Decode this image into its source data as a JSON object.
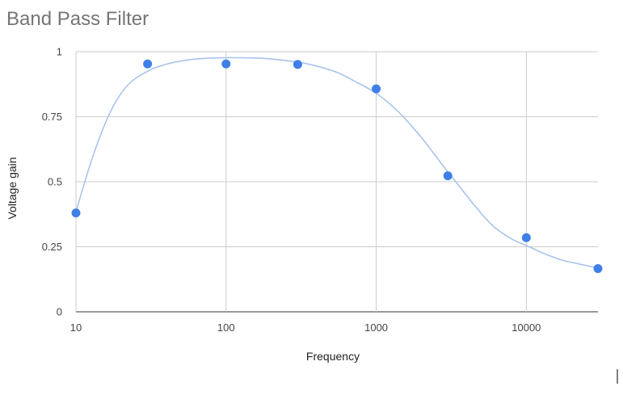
{
  "chart_data": {
    "type": "scatter",
    "title": "Band Pass Filter",
    "xlabel": "Frequency",
    "ylabel": "Voltage gain",
    "x_scale": "log",
    "xlim": [
      10,
      30000
    ],
    "ylim": [
      0,
      1
    ],
    "x_ticks": [
      10,
      100,
      1000,
      10000
    ],
    "x_tick_labels": [
      "10",
      "100",
      "1000",
      "10000"
    ],
    "y_ticks": [
      0,
      0.25,
      0.5,
      0.75,
      1
    ],
    "y_tick_labels": [
      "0",
      "0.25",
      "0.5",
      "0.75",
      "1"
    ],
    "grid": true,
    "legend": "none",
    "series": [
      {
        "x": [
          10,
          30,
          100,
          300,
          1000,
          3000,
          10000,
          30000
        ],
        "y": [
          0.38,
          0.953,
          0.953,
          0.951,
          0.857,
          0.523,
          0.285,
          0.166
        ]
      }
    ],
    "trendline": {
      "x": [
        10,
        13,
        17,
        22,
        30,
        40,
        55,
        75,
        100,
        150,
        200,
        300,
        400,
        550,
        700,
        1000,
        1400,
        2000,
        2800,
        3500,
        4500,
        6000,
        8000,
        10000,
        13000,
        17000,
        22000,
        30000
      ],
      "y": [
        0.385,
        0.6,
        0.77,
        0.87,
        0.925,
        0.952,
        0.968,
        0.975,
        0.977,
        0.976,
        0.972,
        0.96,
        0.945,
        0.92,
        0.89,
        0.84,
        0.77,
        0.67,
        0.56,
        0.49,
        0.41,
        0.33,
        0.28,
        0.255,
        0.225,
        0.2,
        0.185,
        0.168
      ]
    },
    "colors": {
      "points": "#3f7fe8",
      "trendline": "#a9c4ea",
      "grid": "#cccccc",
      "title": "#757575"
    }
  }
}
